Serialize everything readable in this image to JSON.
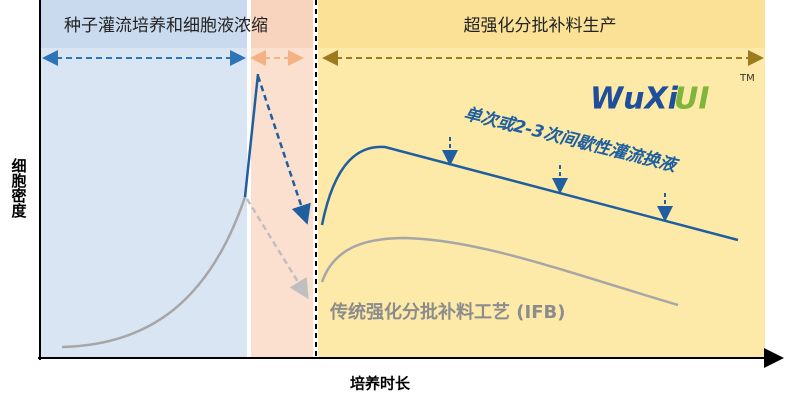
{
  "header": {
    "left_phase": "种子灌流培养和细胞液浓缩",
    "right_phase": "超强化分批补料生产"
  },
  "axes": {
    "y_label": "细胞密度",
    "x_label": "培养时长"
  },
  "annotations": {
    "perfusion_note": "单次或2-3次间歇性灌流换液",
    "ifb_label": "传统强化分批补料工艺 (IFB)"
  },
  "logo": {
    "text_a": "WuXi",
    "text_b": "UI",
    "trademark": "TM"
  }
}
